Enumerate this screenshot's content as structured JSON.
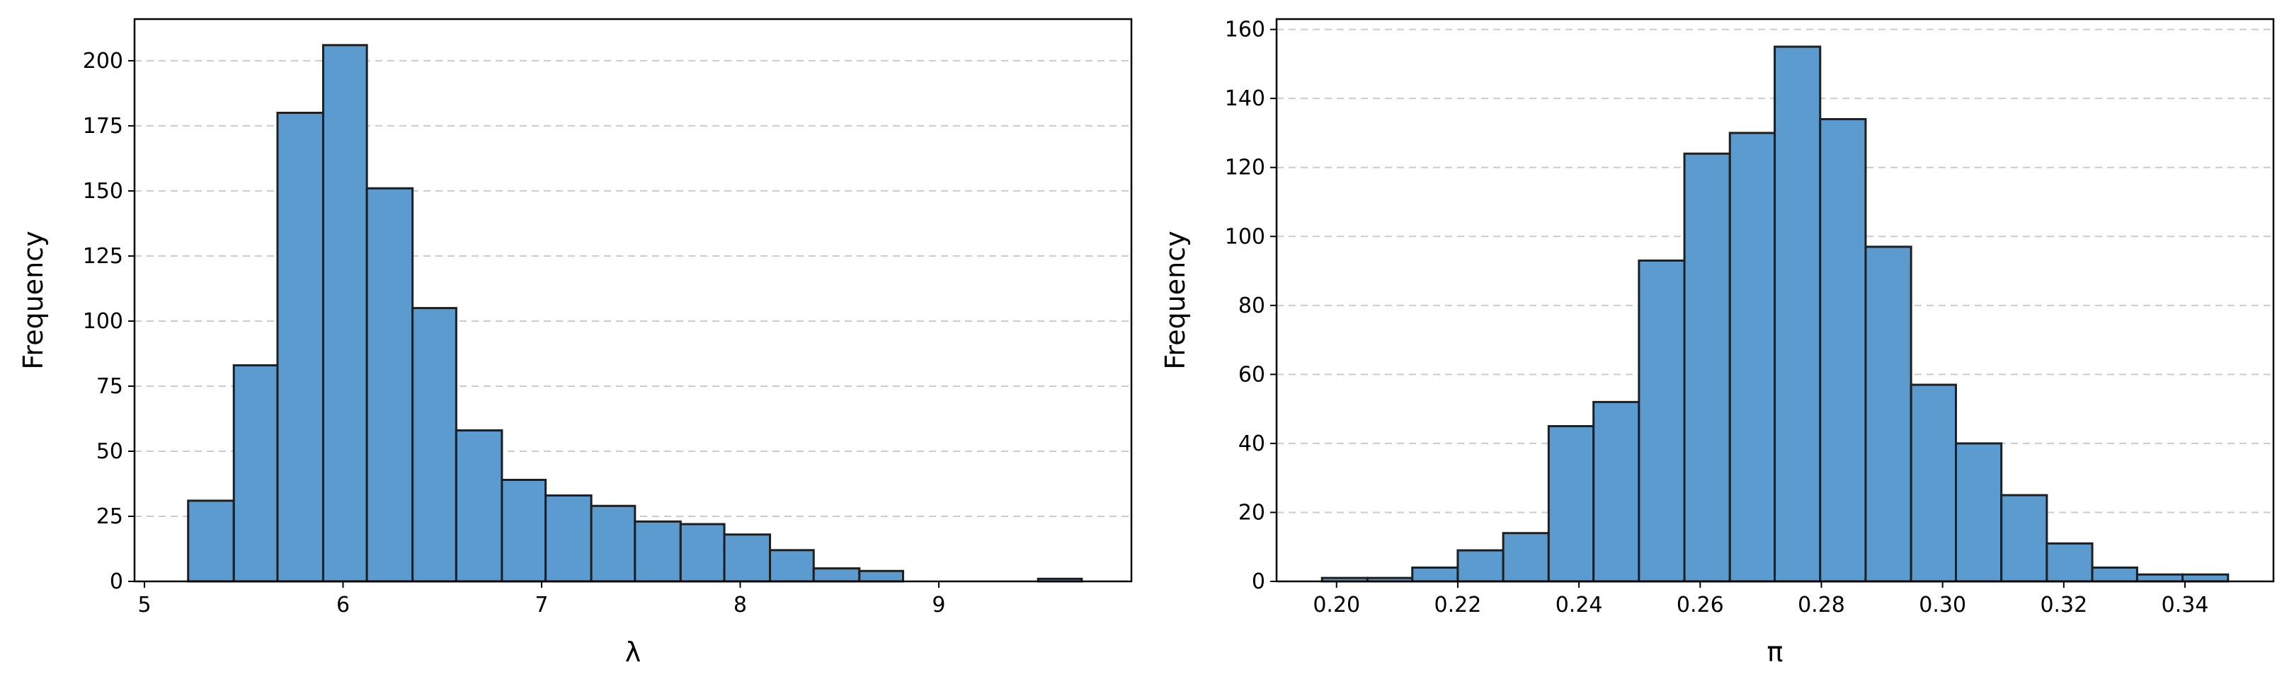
{
  "chart_data": [
    {
      "type": "bar",
      "histogram": true,
      "xlabel": "λ",
      "ylabel": "Frequency",
      "xlim": [
        4.95,
        9.97
      ],
      "ylim": [
        0,
        216
      ],
      "xticks": [
        5,
        6,
        7,
        8,
        9
      ],
      "yticks": [
        0,
        25,
        50,
        75,
        100,
        125,
        150,
        175,
        200
      ],
      "grid": "y-dashed",
      "bar_color": "#5b9bd0",
      "bin_edges": [
        5.22,
        5.45,
        5.67,
        5.9,
        6.12,
        6.35,
        6.57,
        6.8,
        7.02,
        7.25,
        7.47,
        7.7,
        7.92,
        8.15,
        8.37,
        8.6,
        8.82,
        9.05,
        9.27,
        9.5,
        9.72
      ],
      "values": [
        31,
        83,
        180,
        206,
        151,
        105,
        58,
        39,
        33,
        29,
        23,
        22,
        18,
        12,
        5,
        4,
        0,
        0,
        0,
        1
      ]
    },
    {
      "type": "bar",
      "histogram": true,
      "xlabel": "π",
      "ylabel": "Frequency",
      "xlim": [
        0.1901,
        0.3546
      ],
      "ylim": [
        0,
        163
      ],
      "xticks": [
        0.2,
        0.22,
        0.24,
        0.26,
        0.28,
        0.3,
        0.32,
        0.34
      ],
      "xtick_labels": [
        "0.20",
        "0.22",
        "0.24",
        "0.26",
        "0.28",
        "0.30",
        "0.32",
        "0.34"
      ],
      "yticks": [
        0,
        20,
        40,
        60,
        80,
        100,
        120,
        140,
        160
      ],
      "grid": "y-dashed",
      "bar_color": "#5b9bd0",
      "bin_edges": [
        0.1976,
        0.2051,
        0.2125,
        0.22,
        0.2275,
        0.235,
        0.2424,
        0.2499,
        0.2574,
        0.2649,
        0.2723,
        0.2798,
        0.2873,
        0.2948,
        0.3022,
        0.3097,
        0.3172,
        0.3247,
        0.3321,
        0.3396,
        0.3471
      ],
      "values": [
        1,
        1,
        4,
        9,
        14,
        45,
        52,
        93,
        124,
        130,
        155,
        134,
        97,
        57,
        40,
        25,
        11,
        4,
        2,
        2
      ]
    }
  ]
}
